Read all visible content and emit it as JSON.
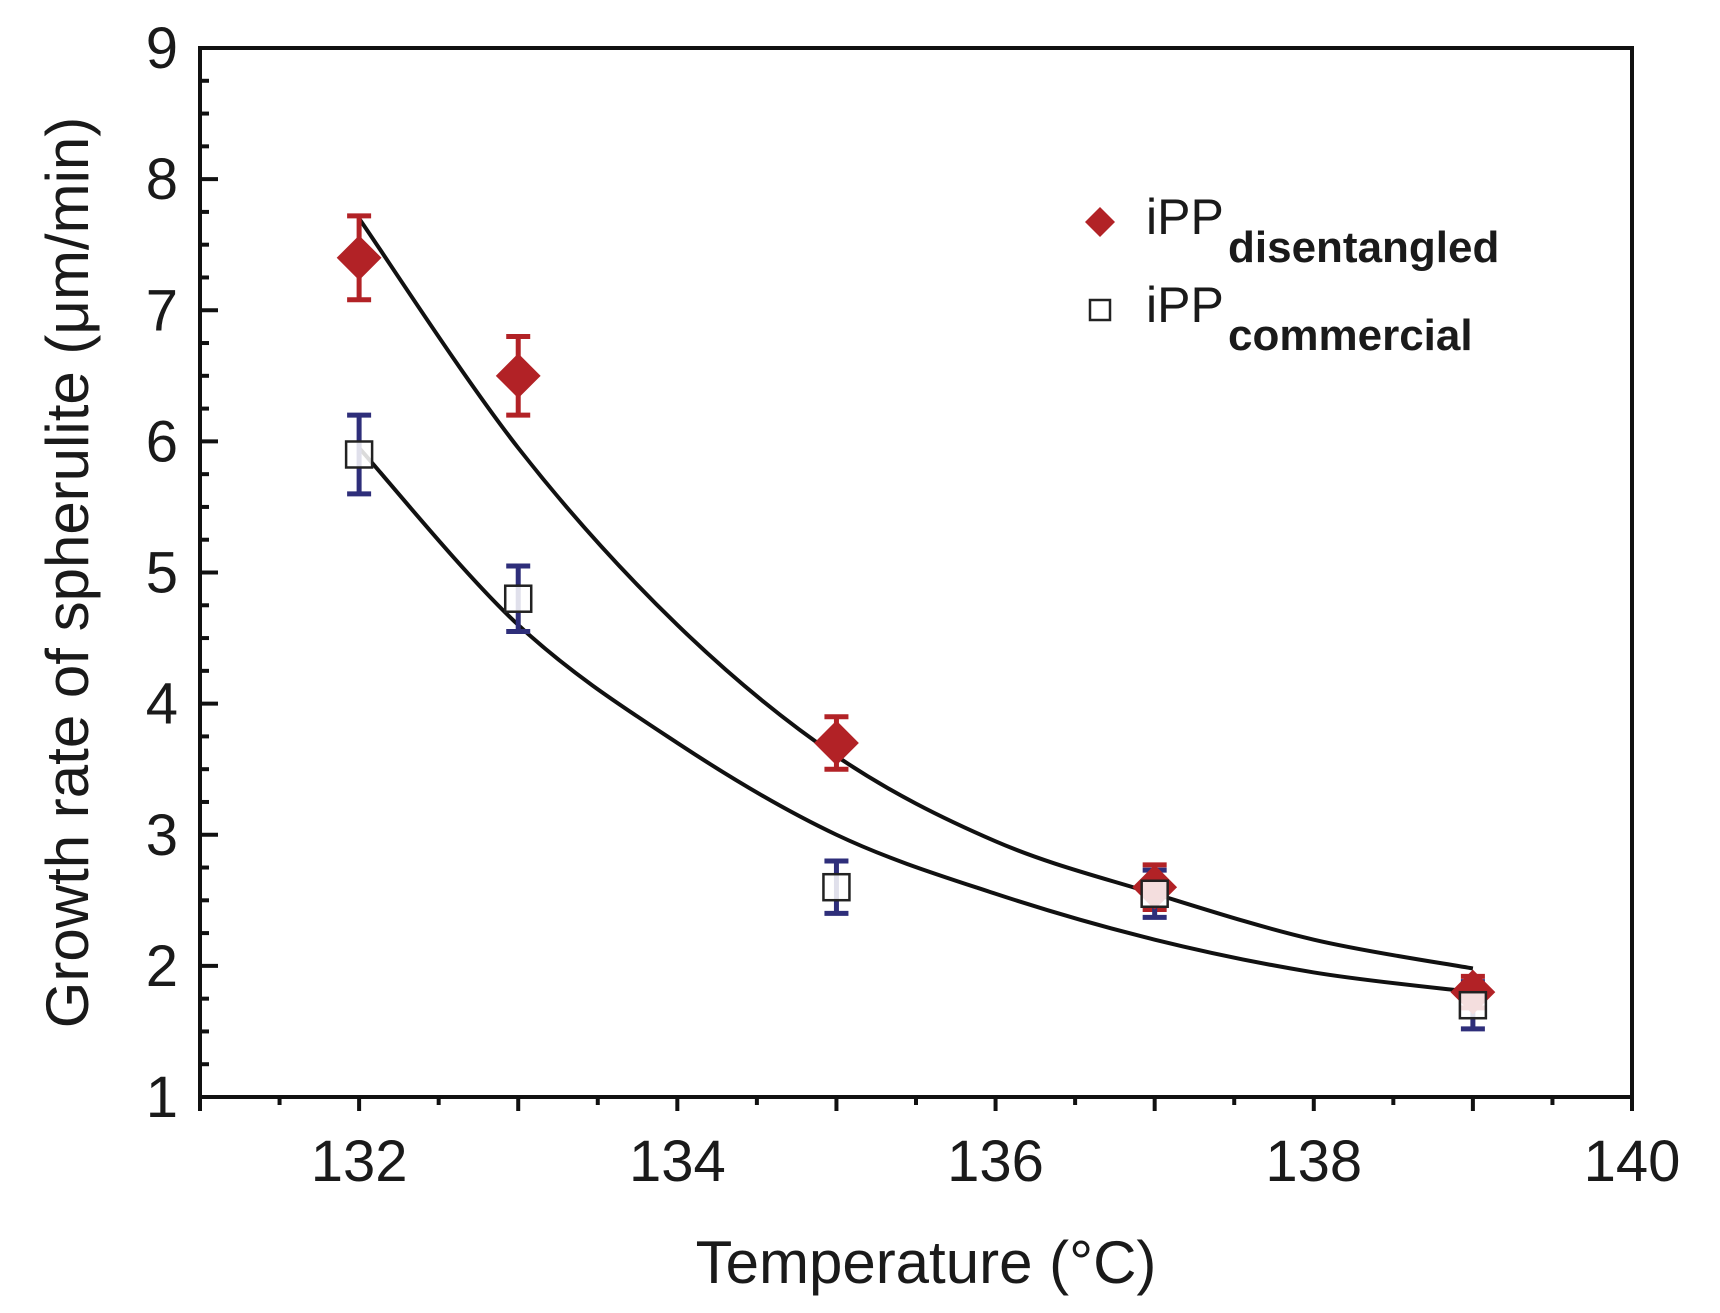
{
  "chart_data": {
    "type": "scatter",
    "title": "",
    "xlabel": "Temperature (°C)",
    "ylabel": "Growth rate of spherulite (μm/min)",
    "xlim": [
      131,
      140
    ],
    "ylim": [
      1,
      9
    ],
    "x_ticks": [
      "132",
      "134",
      "136",
      "138",
      "140"
    ],
    "y_ticks": [
      "1",
      "2",
      "3",
      "4",
      "5",
      "6",
      "7",
      "8",
      "9"
    ],
    "grid": false,
    "legend_position": "top-right",
    "series": [
      {
        "name": "iPP",
        "subscript": "disentangled",
        "marker": "filled-diamond",
        "color": "#b22226",
        "error_color": "#b22226",
        "x": [
          132,
          133,
          135,
          137,
          139
        ],
        "y": [
          7.4,
          6.5,
          3.7,
          2.6,
          1.8
        ],
        "yerr": [
          0.32,
          0.3,
          0.2,
          0.17,
          0.12
        ],
        "fit": [
          [
            132,
            7.7
          ],
          [
            133,
            5.95
          ],
          [
            134,
            4.6
          ],
          [
            135,
            3.6
          ],
          [
            136,
            2.95
          ],
          [
            137,
            2.55
          ],
          [
            138,
            2.2
          ],
          [
            139,
            1.98
          ]
        ]
      },
      {
        "name": "iPP",
        "subscript": "commercial",
        "marker": "open-square",
        "color": "#222222",
        "error_color": "#2e2e7a",
        "x": [
          132,
          133,
          135,
          137,
          139
        ],
        "y": [
          5.9,
          4.8,
          2.6,
          2.55,
          1.7
        ],
        "yerr": [
          0.3,
          0.25,
          0.2,
          0.18,
          0.18
        ],
        "fit": [
          [
            132,
            5.95
          ],
          [
            133,
            4.6
          ],
          [
            134,
            3.7
          ],
          [
            135,
            3.0
          ],
          [
            136,
            2.55
          ],
          [
            137,
            2.2
          ],
          [
            138,
            1.95
          ],
          [
            139,
            1.8
          ]
        ]
      }
    ]
  }
}
